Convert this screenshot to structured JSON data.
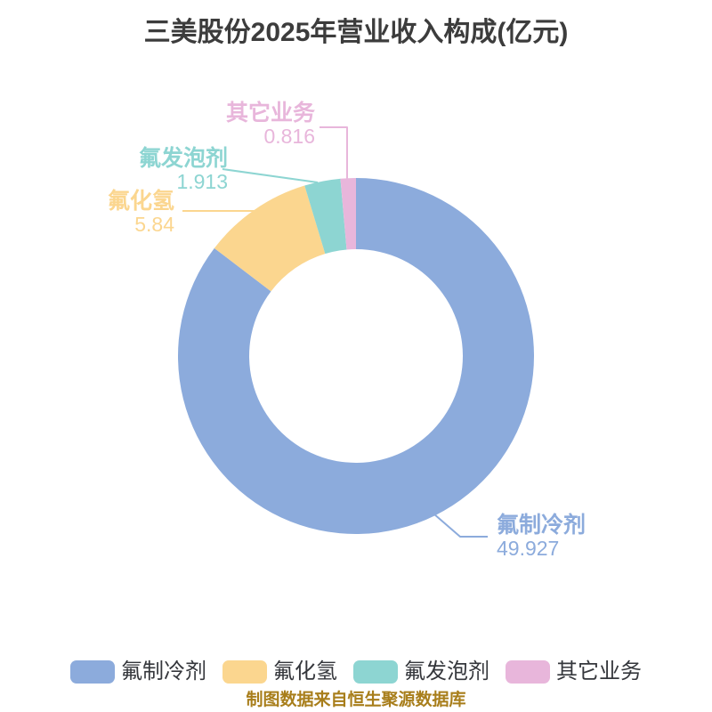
{
  "chart_data": {
    "type": "pie",
    "subtype": "donut",
    "title": "三美股份2025年营业收入构成(亿元)",
    "unit": "亿元",
    "direction": "clockwise",
    "start_angle": "12-oclock",
    "inner_radius_ratio": 0.6,
    "legend_position": "bottom",
    "segments": [
      {
        "label": "氟制冷剂",
        "value": 49.927,
        "color": "#8CABDC"
      },
      {
        "label": "氟化氢",
        "value": 5.84,
        "color": "#FBD68F"
      },
      {
        "label": "氟发泡剂",
        "value": 1.913,
        "color": "#8DD5D2"
      },
      {
        "label": "其它业务",
        "value": 0.816,
        "color": "#E8B6DB"
      }
    ]
  },
  "source_note": "制图数据来自恒生聚源数据库",
  "colors": {
    "title_text": "#3C3C3C",
    "legend_text": "#35373C",
    "source_note_text": "#A87E1B",
    "background": "#FFFFFF"
  }
}
